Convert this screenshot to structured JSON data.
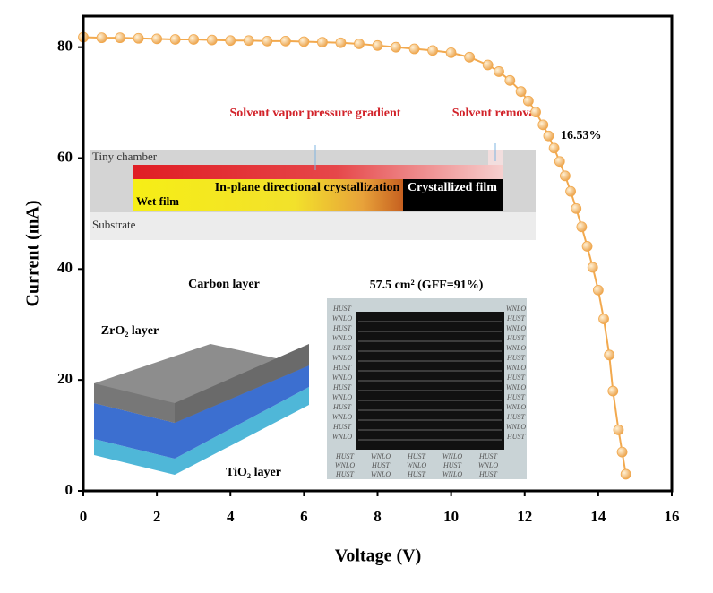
{
  "chart_data": {
    "type": "line",
    "x_label": "Voltage (V)",
    "y_label": "Current (mA)",
    "x": [
      0,
      0.5,
      1,
      1.5,
      2,
      2.5,
      3,
      3.5,
      4,
      4.5,
      5,
      5.5,
      6,
      6.5,
      7,
      7.5,
      8,
      8.5,
      9,
      9.5,
      10,
      10.5,
      11,
      11.3,
      11.6,
      11.9,
      12.1,
      12.3,
      12.5,
      12.65,
      12.8,
      12.95,
      13.1,
      13.25,
      13.4,
      13.55,
      13.7,
      13.85,
      14.0,
      14.15,
      14.3,
      14.4,
      14.55,
      14.65,
      14.75
    ],
    "series": [
      {
        "color": "#f2a94e",
        "values": [
          81.8,
          81.7,
          81.7,
          81.6,
          81.5,
          81.4,
          81.4,
          81.3,
          81.2,
          81.2,
          81.1,
          81.1,
          81.0,
          80.9,
          80.8,
          80.6,
          80.3,
          80.0,
          79.7,
          79.4,
          79.0,
          78.2,
          76.8,
          75.6,
          74.0,
          72.0,
          70.3,
          68.3,
          66.0,
          64.0,
          61.8,
          59.4,
          56.8,
          54.0,
          50.9,
          47.6,
          44.1,
          40.3,
          36.2,
          31.0,
          24.5,
          18.0,
          11.0,
          7.0,
          3.0
        ]
      }
    ],
    "annotation": "16.53%",
    "xlim": [
      0,
      16
    ],
    "xticks": [
      0,
      2,
      4,
      6,
      8,
      10,
      12,
      14,
      16
    ],
    "ylim": [
      0,
      85.6
    ],
    "yticks": [
      0,
      20,
      40,
      60,
      80
    ]
  },
  "insets": {
    "process": {
      "top_left": "Solvent vapor pressure gradient",
      "top_right": "Solvent removal",
      "chamber": "Tiny chamber",
      "wet": "Wet film",
      "middle": "In-plane directional crystallization",
      "crystal": "Crystallized film",
      "substrate": "Substrate"
    },
    "layers": {
      "carbon": "Carbon layer",
      "zro2": "ZrO₂ layer",
      "tio2": "TiO₂ layer"
    },
    "module": {
      "title": "57.5 cm² (GFF=91%)",
      "marks": [
        "HUST",
        "WNLO"
      ]
    }
  }
}
